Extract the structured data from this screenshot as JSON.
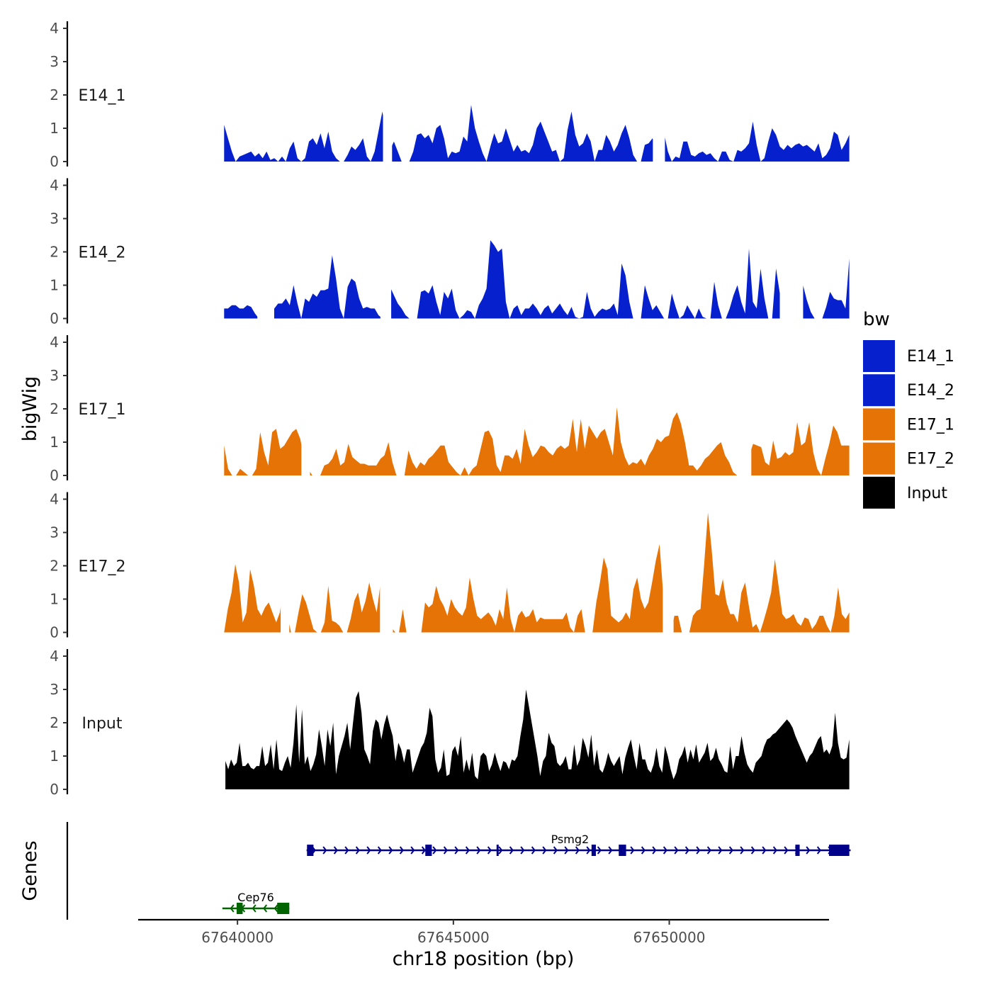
{
  "chart_data": {
    "type": "area",
    "subtype": "genome-coverage-tracks",
    "xlabel": "chr18 position (bp)",
    "ylabel": "bigWig",
    "gene_panel_label": "Genes",
    "xlim": [
      67637700,
      67653700
    ],
    "ylim": [
      0,
      4
    ],
    "x_ticks": [
      67640000,
      67645000,
      67650000
    ],
    "x_tick_labels": [
      "67640000",
      "67645000",
      "67650000"
    ],
    "y_ticks": [
      0,
      1,
      2,
      3,
      4
    ],
    "y_tick_labels": [
      "0",
      "1",
      "2",
      "3",
      "4"
    ],
    "legend": {
      "title": "bw",
      "position": "right",
      "entries": [
        {
          "name": "E14_1",
          "color": "#0520CC"
        },
        {
          "name": "E14_2",
          "color": "#0520CC"
        },
        {
          "name": "E17_1",
          "color": "#E67305"
        },
        {
          "name": "E17_2",
          "color": "#E67305"
        },
        {
          "name": "Input",
          "color": "#000000"
        }
      ]
    },
    "series": [
      {
        "name": "E14_1",
        "color": "#0520CC",
        "x_start": 67639690,
        "x_end": 67654170,
        "values": [
          1.1,
          0.7,
          0.3,
          0,
          0.15,
          0.2,
          0.25,
          0.3,
          0.15,
          0.25,
          0.1,
          0.3,
          0.05,
          0.1,
          0,
          0.15,
          0,
          0.4,
          0.6,
          0.1,
          0,
          0.1,
          0.6,
          0.7,
          0.5,
          0.85,
          0.4,
          0.9,
          0.3,
          0.1,
          0,
          0,
          0.2,
          0.45,
          0.35,
          0.5,
          0.7,
          0.15,
          0,
          0.3,
          0.9,
          1.5,
          0.8,
          0.35,
          0.6,
          0.3,
          0,
          0,
          0,
          0.3,
          0.8,
          0.85,
          0.7,
          0.8,
          0.55,
          1.0,
          1.1,
          0.7,
          0.1,
          0.3,
          0.25,
          0.3,
          0.75,
          0.6,
          1.7,
          1.0,
          0.6,
          0.25,
          0,
          0.45,
          0.85,
          0.55,
          0.6,
          1.0,
          0.65,
          0.3,
          0.5,
          0.3,
          0.35,
          0.25,
          0.5,
          1.0,
          1.2,
          0.9,
          0.6,
          0.3,
          0.35,
          0,
          0.1,
          0.95,
          1.5,
          0.8,
          0.45,
          0.55,
          0.85,
          0.6,
          0,
          0.35,
          0.35,
          0.8,
          0.6,
          0.3,
          0.5,
          0.85,
          1.1,
          0.7,
          0.2,
          0,
          0,
          0.5,
          0.55,
          0.7,
          0.3,
          0.4,
          0.85,
          0.3,
          0,
          0.15,
          0.1,
          0.6,
          0.6,
          0.2,
          0.15,
          0.25,
          0.3,
          0.2,
          0.25,
          0.1,
          0,
          0.3,
          0.3,
          0.05,
          0,
          0.35,
          0.3,
          0.4,
          0.55,
          1.2,
          0.5,
          0,
          0.1,
          0.6,
          1.0,
          0.8,
          0.45,
          0.35,
          0.5,
          0.4,
          0.5,
          0.55,
          0.45,
          0.5,
          0.4,
          0.3,
          0.55,
          0.1,
          0.2,
          0.4,
          0.9,
          0.8,
          0.35,
          0.55,
          0.8
        ],
        "gaps": [
          [
            67643370,
            67643580
          ],
          [
            67649620,
            67649900
          ]
        ]
      },
      {
        "name": "E14_2",
        "color": "#0520CC",
        "x_start": 67639690,
        "x_end": 67654170,
        "values": [
          0.3,
          0.3,
          0.4,
          0.4,
          0.3,
          0.3,
          0.4,
          0.35,
          0.15,
          0,
          0,
          0,
          0,
          0.3,
          0.45,
          0.45,
          0.6,
          0.4,
          1.0,
          0.45,
          0,
          0.6,
          0.5,
          0.75,
          0.65,
          0.85,
          0.85,
          0.9,
          1.9,
          1.2,
          0.3,
          0,
          0.95,
          1.2,
          1.1,
          0.6,
          0.3,
          0.35,
          0.3,
          0.3,
          0.1,
          0,
          0.7,
          0.95,
          0.7,
          0.45,
          0.3,
          0.1,
          0,
          0,
          0,
          0.8,
          0.85,
          0.75,
          1.0,
          0.5,
          0.1,
          0.8,
          0.6,
          0.9,
          0.25,
          0,
          0.1,
          0.25,
          0.2,
          0,
          0.4,
          0.6,
          0.9,
          2.35,
          2.2,
          2.0,
          2.1,
          0.5,
          0,
          0.3,
          0.4,
          0.1,
          0.3,
          0.3,
          0.45,
          0.3,
          0.1,
          0.3,
          0.4,
          0.15,
          0.3,
          0.45,
          0.25,
          0.1,
          0.35,
          0.05,
          0,
          0.05,
          0.8,
          0.3,
          0.05,
          0.2,
          0.3,
          0.25,
          0.3,
          0.45,
          0.1,
          1.65,
          1.3,
          0.5,
          0,
          0,
          0,
          1.0,
          0.6,
          0.25,
          0.4,
          0.2,
          0,
          0,
          0.75,
          0.35,
          0,
          0.1,
          0.4,
          0.2,
          0,
          0.3,
          0.05,
          0,
          0,
          1.1,
          0.4,
          0,
          0,
          0.3,
          0.7,
          1.0,
          0.5,
          0.15,
          2.1,
          0.5,
          0.3,
          1.5,
          0.6,
          0,
          0,
          1.5,
          0.75,
          0.55,
          0.8,
          0.7,
          0.5,
          0.75,
          1.0,
          0.55,
          0.2,
          0,
          0,
          0,
          0.35,
          0.8,
          0.6,
          0.55,
          0.55,
          0.3,
          1.8
        ],
        "gaps": [
          [
            67640460,
            67640850
          ],
          [
            67643310,
            67643560
          ],
          [
            67652560,
            67653100
          ]
        ]
      },
      {
        "name": "E17_1",
        "color": "#E67305",
        "x_start": 67639690,
        "x_end": 67654170,
        "values": [
          0.9,
          0.2,
          0,
          0,
          0.2,
          0.1,
          0,
          0,
          0.2,
          1.3,
          0.7,
          0.3,
          1.3,
          1.4,
          0.8,
          0.9,
          1.1,
          1.3,
          1.4,
          1.1,
          0.5,
          0.2,
          0,
          0,
          0,
          0.3,
          0.35,
          0.5,
          0.8,
          0.3,
          0.4,
          0.95,
          0.55,
          0.45,
          0.35,
          0.35,
          0.3,
          0.3,
          0.3,
          0.5,
          0.6,
          1.0,
          0.4,
          0,
          0,
          0,
          0.75,
          0.4,
          0.2,
          0.4,
          0.3,
          0.5,
          0.6,
          0.75,
          0.9,
          0.9,
          0.4,
          0.25,
          0.1,
          0,
          0.25,
          0,
          0.2,
          0.3,
          0.8,
          1.3,
          1.35,
          1.1,
          0.3,
          0.1,
          0.6,
          0.6,
          0.5,
          0.8,
          0.35,
          1.4,
          0.9,
          0.55,
          0.7,
          0.9,
          0.85,
          0.7,
          0.6,
          0.8,
          0.9,
          0.8,
          0.9,
          1.7,
          0.7,
          1.7,
          0.8,
          1.5,
          1.3,
          1.1,
          1.3,
          1.4,
          1.0,
          0.6,
          2.05,
          1.0,
          0.55,
          0.3,
          0.4,
          0.35,
          0.5,
          0.3,
          0.6,
          0.8,
          1.1,
          1.0,
          1.15,
          1.2,
          1.7,
          1.9,
          1.55,
          1.0,
          0.3,
          0.3,
          0.15,
          0.3,
          0.5,
          0.6,
          0.75,
          0.9,
          1.0,
          0.6,
          0.4,
          0.1,
          0,
          0,
          0,
          0.6,
          0.95,
          0.9,
          0.85,
          0.4,
          0.3,
          1.05,
          0.5,
          0.55,
          0.7,
          0.6,
          0.7,
          1.6,
          0.9,
          1.0,
          1.6,
          0.7,
          0.2,
          0,
          0.5,
          0.95,
          1.5,
          1.3,
          0.9,
          0.9,
          0.9
        ],
        "gaps": [
          [
            67641480,
            67641680
          ],
          [
            67651640,
            67651900
          ]
        ]
      },
      {
        "name": "E17_2",
        "color": "#E67305",
        "x_start": 67639690,
        "x_end": 67654170,
        "values": [
          0,
          0.7,
          1.2,
          2.05,
          1.5,
          0.3,
          0.6,
          1.9,
          1.4,
          0.7,
          0.5,
          0.75,
          0.9,
          0.6,
          0.3,
          0.6,
          1.35,
          0.5,
          0,
          0,
          0.6,
          1.15,
          0.9,
          0.5,
          0.1,
          0,
          0,
          0.3,
          1.4,
          0.35,
          0.3,
          0.2,
          0,
          0,
          0.4,
          0.95,
          1.2,
          0.6,
          0.95,
          1.5,
          1.0,
          0.6,
          1.45,
          1.0,
          0.45,
          0.15,
          0,
          0,
          0.7,
          0,
          0,
          0,
          0,
          0,
          0.9,
          0.75,
          0.85,
          1.4,
          1.0,
          0.8,
          0.5,
          1.0,
          0.75,
          0.6,
          0.5,
          0.75,
          1.65,
          1.0,
          0.5,
          0.4,
          0.5,
          0.6,
          0.45,
          0.2,
          0.7,
          0.4,
          1.35,
          0.4,
          0,
          0.5,
          0.65,
          0.45,
          0.5,
          0.7,
          0.3,
          0.45,
          0.4,
          0.4,
          0.4,
          0.4,
          0.4,
          0.4,
          0.6,
          0.15,
          0,
          0.5,
          0.7,
          0,
          0,
          0,
          0.9,
          1.5,
          2.25,
          1.9,
          0.5,
          0.4,
          0.3,
          0.4,
          0.6,
          0.4,
          1.3,
          1.65,
          1.0,
          0.7,
          0.9,
          1.5,
          2.15,
          2.65,
          1.15,
          0.4,
          0,
          0.5,
          0.5,
          0,
          0,
          0,
          0.5,
          0.65,
          0.7,
          2.05,
          3.6,
          2.5,
          1.15,
          1.1,
          1.6,
          0.9,
          0.55,
          0.55,
          0.3,
          1.2,
          1.5,
          0.8,
          0.15,
          0.25,
          0,
          0.35,
          0.75,
          1.2,
          2.2,
          1.4,
          0.55,
          0.4,
          0.45,
          0.55,
          0.3,
          0.2,
          0.45,
          0.4,
          0.1,
          0.25,
          0.5,
          0.5,
          0.2,
          0,
          0.5,
          1.35,
          0.55,
          0.4,
          0.6
        ],
        "gaps": [
          [
            67641000,
            67641200
          ],
          [
            67643300,
            67643600
          ],
          [
            67649850,
            67650100
          ]
        ]
      },
      {
        "name": "Input",
        "color": "#000000",
        "x_start": 67639720,
        "x_end": 67654170,
        "values": [
          0.85,
          0.6,
          0.9,
          0.7,
          0.8,
          1.4,
          0.7,
          0.7,
          0.8,
          0.65,
          0.6,
          0.7,
          0.7,
          1.3,
          0.7,
          0.8,
          1.35,
          0.6,
          1.5,
          0.6,
          0.55,
          0.8,
          1.0,
          0.65,
          1.4,
          2.55,
          0.8,
          2.4,
          0.75,
          1.0,
          0.55,
          0.75,
          1.05,
          1.8,
          1.3,
          0.7,
          1.8,
          1.3,
          2.0,
          0.45,
          1.0,
          1.3,
          1.6,
          2.0,
          1.2,
          2.0,
          2.75,
          2.95,
          2.3,
          1.2,
          1.0,
          0.75,
          1.75,
          2.1,
          2.0,
          1.5,
          1.95,
          2.25,
          1.9,
          1.6,
          0.85,
          1.4,
          1.2,
          0.8,
          1.2,
          1.2,
          0.5,
          0.75,
          1.0,
          1.25,
          1.4,
          1.7,
          2.45,
          2.2,
          0.9,
          0.5,
          0.65,
          1.2,
          0.4,
          0.45,
          1.15,
          1.3,
          1.0,
          1.6,
          0.5,
          0.9,
          0.55,
          1.1,
          0.4,
          0.3,
          1.0,
          1.1,
          1.0,
          0.55,
          0.75,
          1.1,
          0.8,
          0.55,
          0.85,
          0.8,
          0.6,
          0.9,
          0.85,
          1.0,
          1.6,
          2.1,
          3.0,
          2.5,
          2.0,
          1.5,
          1.0,
          0.4,
          0.85,
          1.0,
          1.7,
          1.4,
          1.3,
          0.8,
          0.7,
          0.8,
          1.0,
          0.6,
          0.6,
          1.35,
          0.7,
          0.9,
          1.55,
          1.3,
          0.95,
          1.65,
          0.7,
          1.2,
          0.6,
          0.5,
          0.75,
          1.1,
          0.85,
          0.7,
          0.85,
          1.0,
          0.45,
          0.95,
          1.25,
          1.5,
          1.0,
          0.6,
          1.4,
          0.9,
          0.9,
          0.6,
          0.5,
          0.75,
          1.25,
          0.7,
          0.5,
          1.3,
          1.0,
          0.6,
          0.3,
          0.5,
          0.9,
          1.05,
          1.3,
          0.8,
          1.2,
          0.9,
          1.35,
          0.8,
          0.95,
          1.1,
          1.4,
          0.85,
          0.95,
          1.25,
          0.9,
          0.75,
          0.55,
          0.5,
          1.3,
          0.6,
          1.0,
          1.0,
          1.6,
          1.1,
          0.75,
          0.6,
          0.5,
          0.8,
          0.9,
          1.0,
          1.3,
          1.5,
          1.55,
          1.65,
          1.7,
          1.8,
          1.9,
          2.0,
          2.1,
          2.0,
          1.85,
          1.6,
          1.4,
          1.2,
          1.0,
          0.8,
          1.0,
          1.1,
          1.3,
          1.5,
          1.6,
          1.1,
          1.2,
          1.05,
          1.3,
          2.3,
          1.4,
          0.95,
          0.9,
          0.95,
          1.5
        ],
        "gaps": []
      }
    ],
    "genes": [
      {
        "name": "Psmg2",
        "strand": "+",
        "color": "#00008B",
        "start": 67641600,
        "end": 67654200,
        "exons": [
          [
            67641610,
            67641760
          ],
          [
            67644350,
            67644500
          ],
          [
            67646000,
            67646040
          ],
          [
            67648200,
            67648300
          ],
          [
            67648830,
            67649000
          ],
          [
            67652920,
            67653020
          ],
          [
            67653700,
            67654170
          ]
        ]
      },
      {
        "name": "Cep76",
        "strand": "-",
        "color": "#006400",
        "start": 67639650,
        "end": 67641200,
        "exons": [
          [
            67639980,
            67640120
          ],
          [
            67640920,
            67641200
          ]
        ]
      }
    ]
  }
}
